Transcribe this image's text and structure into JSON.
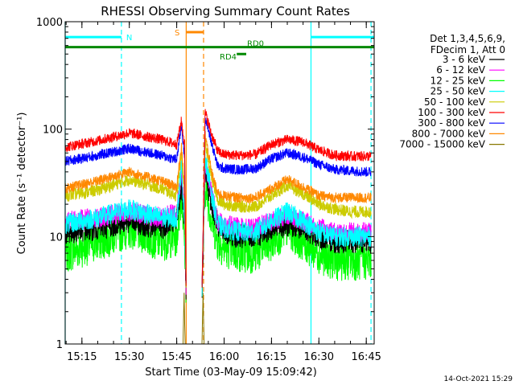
{
  "chart_data": {
    "type": "line",
    "title": "RHESSI Observing Summary Count Rates",
    "xlabel": "Start Time (03-May-09 15:09:42)",
    "ylabel": "Count Rate (s⁻¹ detector⁻¹)",
    "yscale": "log",
    "ylim": [
      1,
      1000
    ],
    "xlim": [
      "15:09:42",
      "16:47:30"
    ],
    "grid": false,
    "x_tick_labels": [
      "15:15",
      "15:30",
      "15:45",
      "16:00",
      "16:15",
      "16:30",
      "16:45"
    ],
    "y_tick_labels": [
      {
        "value": 1,
        "label": "1"
      },
      {
        "value": 10,
        "label": "10"
      },
      {
        "value": 100,
        "label": "100"
      },
      {
        "value": 1000,
        "label": "1000"
      }
    ],
    "timestamp": "14-Oct-2021 15:29",
    "legend": {
      "placement": "right",
      "header": [
        "Det 1,3,4,5,6,9,",
        "FDecim 1, Att 0"
      ],
      "entries": [
        {
          "label": "3 - 6 keV",
          "color": "#000000"
        },
        {
          "label": "6 - 12 keV",
          "color": "#ff00ff"
        },
        {
          "label": "12 - 25 keV",
          "color": "#00ff00"
        },
        {
          "label": "25 - 50 keV",
          "color": "#00ffff"
        },
        {
          "label": "50 - 100 keV",
          "color": "#cccc00"
        },
        {
          "label": "100 - 300 keV",
          "color": "#ff0000"
        },
        {
          "label": "300 - 800 keV",
          "color": "#0000ff"
        },
        {
          "label": "800 - 7000 keV",
          "color": "#ff8800"
        },
        {
          "label": "7000 - 15000 keV",
          "color": "#887700"
        }
      ]
    },
    "series": [
      {
        "name": "3 - 6 keV",
        "color": "#000000",
        "noise": 0.12,
        "x": [
          "15:09:42",
          "15:20",
          "15:30",
          "15:40",
          "15:45",
          "15:46:30",
          "15:47:30",
          "15:48",
          "15:53",
          "15:54",
          "15:56",
          "15:58",
          "16:00",
          "16:05",
          "16:10",
          "16:15",
          "16:20",
          "16:25",
          "16:30",
          "16:35",
          "16:40",
          "16:45",
          "16:46:30"
        ],
        "y": [
          11,
          12,
          14,
          12,
          15,
          30,
          14,
          3,
          3,
          40,
          20,
          13,
          11,
          10,
          10,
          12,
          13,
          12,
          10,
          9,
          9,
          9,
          9
        ]
      },
      {
        "name": "6 - 12 keV",
        "color": "#ff00ff",
        "noise": 0.1,
        "x": [
          "15:09:42",
          "15:20",
          "15:30",
          "15:40",
          "15:45",
          "15:46:30",
          "15:47:30",
          "15:48",
          "15:53",
          "15:54",
          "15:56",
          "15:58",
          "16:00",
          "16:05",
          "16:10",
          "16:15",
          "16:20",
          "16:25",
          "16:30",
          "16:35",
          "16:40",
          "16:45",
          "16:46:30"
        ],
        "y": [
          14,
          15,
          17,
          15,
          17,
          40,
          16,
          3,
          3,
          50,
          25,
          14,
          13,
          12,
          12,
          14,
          16,
          14,
          12,
          11,
          11,
          11,
          11
        ]
      },
      {
        "name": "12 - 25 keV",
        "color": "#00ff00",
        "noise": 0.2,
        "x": [
          "15:09:42",
          "15:20",
          "15:30",
          "15:40",
          "15:45",
          "15:46:30",
          "15:47:30",
          "15:48",
          "15:53",
          "15:54",
          "15:56",
          "15:58",
          "16:00",
          "16:05",
          "16:10",
          "16:15",
          "16:20",
          "16:25",
          "16:30",
          "16:35",
          "16:40",
          "16:45",
          "16:46:30"
        ],
        "y": [
          7,
          9,
          12,
          9,
          10,
          25,
          9,
          3,
          3,
          30,
          15,
          9,
          8,
          7,
          7,
          9,
          12,
          9,
          7,
          6,
          6,
          6,
          6
        ]
      },
      {
        "name": "25 - 50 keV",
        "color": "#00ffff",
        "noise": 0.1,
        "x": [
          "15:09:42",
          "15:20",
          "15:30",
          "15:40",
          "15:45",
          "15:46:30",
          "15:47:30",
          "15:48",
          "15:53",
          "15:54",
          "15:56",
          "15:58",
          "16:00",
          "16:05",
          "16:10",
          "16:15",
          "16:20",
          "16:25",
          "16:30",
          "16:35",
          "16:40",
          "16:45",
          "16:46:30"
        ],
        "y": [
          13,
          15,
          18,
          15,
          15,
          45,
          15,
          3,
          3,
          55,
          25,
          13,
          12,
          11,
          11,
          14,
          17,
          14,
          11,
          10,
          10,
          10,
          10
        ]
      },
      {
        "name": "50 - 100 keV",
        "color": "#cccc00",
        "noise": 0.06,
        "x": [
          "15:09:42",
          "15:20",
          "15:30",
          "15:40",
          "15:45",
          "15:46:30",
          "15:47:30",
          "15:48",
          "15:53",
          "15:54",
          "15:56",
          "15:58",
          "16:00",
          "16:05",
          "16:10",
          "16:15",
          "16:20",
          "16:25",
          "16:30",
          "16:35",
          "16:40",
          "16:45",
          "16:46:30"
        ],
        "y": [
          24,
          27,
          34,
          28,
          24,
          60,
          24,
          3,
          3,
          75,
          35,
          22,
          20,
          19,
          19,
          24,
          30,
          25,
          20,
          18,
          17,
          17,
          17
        ]
      },
      {
        "name": "100 - 300 keV",
        "color": "#ff0000",
        "noise": 0.05,
        "x": [
          "15:09:42",
          "15:20",
          "15:30",
          "15:40",
          "15:45",
          "15:46:30",
          "15:47:30",
          "15:48",
          "15:53",
          "15:54",
          "15:56",
          "15:58",
          "16:00",
          "16:05",
          "16:10",
          "16:15",
          "16:20",
          "16:25",
          "16:30",
          "16:35",
          "16:40",
          "16:45",
          "16:46:30"
        ],
        "y": [
          68,
          78,
          92,
          80,
          72,
          120,
          70,
          3,
          3,
          145,
          90,
          62,
          58,
          57,
          58,
          72,
          80,
          76,
          64,
          57,
          56,
          56,
          56
        ]
      },
      {
        "name": "300 - 800 keV",
        "color": "#0000ff",
        "noise": 0.05,
        "x": [
          "15:09:42",
          "15:20",
          "15:30",
          "15:40",
          "15:45",
          "15:46:30",
          "15:47:30",
          "15:48",
          "15:53",
          "15:54",
          "15:56",
          "15:58",
          "16:00",
          "16:05",
          "16:10",
          "16:15",
          "16:20",
          "16:25",
          "16:30",
          "16:35",
          "16:40",
          "16:45",
          "16:46:30"
        ],
        "y": [
          50,
          57,
          66,
          57,
          52,
          110,
          52,
          3,
          3,
          130,
          75,
          45,
          43,
          42,
          43,
          53,
          60,
          55,
          47,
          42,
          41,
          40,
          40
        ]
      },
      {
        "name": "800 - 7000 keV",
        "color": "#ff8800",
        "noise": 0.05,
        "x": [
          "15:09:42",
          "15:20",
          "15:30",
          "15:40",
          "15:45",
          "15:46:30",
          "15:47:30",
          "15:48",
          "15:53",
          "15:54",
          "15:56",
          "15:58",
          "16:00",
          "16:05",
          "16:10",
          "16:15",
          "16:20",
          "16:25",
          "16:30",
          "16:35",
          "16:40",
          "16:45",
          "16:46:30"
        ],
        "y": [
          28,
          33,
          40,
          33,
          29,
          70,
          28,
          3,
          3,
          90,
          40,
          25,
          24,
          23,
          23,
          28,
          34,
          29,
          24,
          23,
          23,
          23,
          23
        ]
      },
      {
        "name": "7000 - 15000 keV",
        "color": "#887700",
        "noise": 0.0,
        "x": [
          "15:47",
          "15:47:20",
          "15:47:40",
          "15:48",
          "15:53",
          "15:53:20",
          "15:53:40",
          "15:54"
        ],
        "y": [
          1,
          3,
          1,
          1,
          1,
          3,
          1,
          1
        ]
      }
    ],
    "vertical_markers": [
      {
        "time": "15:09:42",
        "color": "#00ffff",
        "style": "solid"
      },
      {
        "time": "15:27:30",
        "color": "#00ffff",
        "style": "dashed"
      },
      {
        "time": "15:48",
        "color": "#ff8800",
        "style": "solid"
      },
      {
        "time": "15:53:30",
        "color": "#ff8800",
        "style": "dashed"
      },
      {
        "time": "16:27:30",
        "color": "#00ffff",
        "style": "solid"
      },
      {
        "time": "16:46:30",
        "color": "#00ffff",
        "style": "dashed"
      }
    ],
    "flag_bars": [
      {
        "label": "N",
        "color": "#00ffff",
        "start": "15:09:42",
        "end": "15:27:30",
        "level": 720
      },
      {
        "label": "",
        "color": "#00ffff",
        "start": "16:27:30",
        "end": "16:47:30",
        "level": 720
      },
      {
        "label": "S",
        "color": "#ff8800",
        "start": "15:48",
        "end": "15:53:30",
        "level": 800
      },
      {
        "label": "RD0",
        "color": "#008800",
        "start": "15:09:42",
        "end": "16:47:30",
        "level": 580
      },
      {
        "label": "RD4",
        "color": "#008800",
        "start": "16:04",
        "end": "16:07",
        "level": 500
      }
    ]
  }
}
